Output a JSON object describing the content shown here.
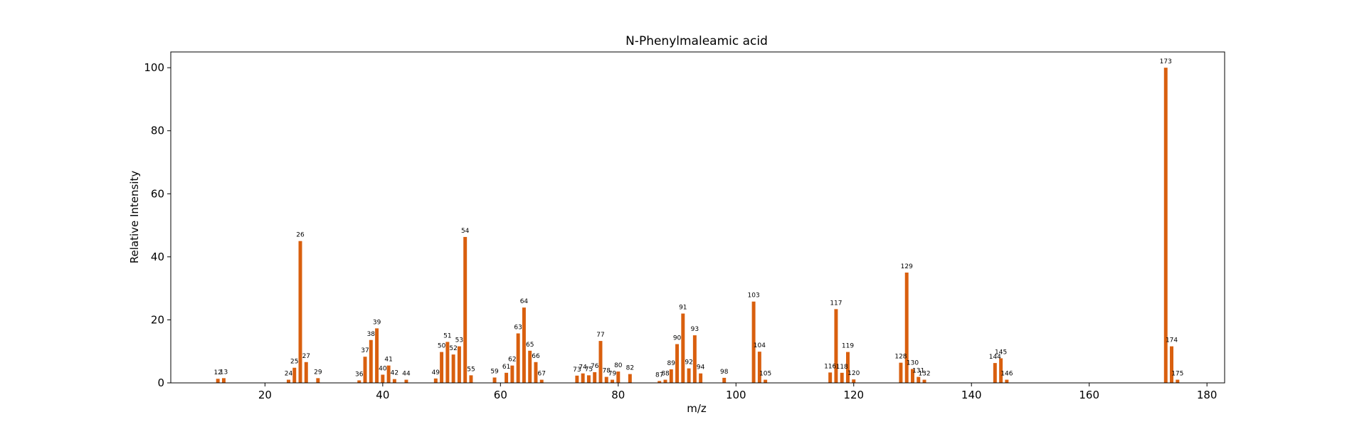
{
  "chart_data": {
    "type": "bar",
    "title": "N-Phenylmaleamic acid",
    "xlabel": "m/z",
    "ylabel": "Relative Intensity",
    "xlim": [
      4,
      183
    ],
    "ylim": [
      0,
      105
    ],
    "xticks": [
      20,
      40,
      60,
      80,
      100,
      120,
      140,
      160,
      180
    ],
    "yticks": [
      0,
      20,
      40,
      60,
      80,
      100
    ],
    "grid": false,
    "bar_color": "#d95f0e",
    "peaks": [
      {
        "mz": 12,
        "intensity": 1.3,
        "label": "12"
      },
      {
        "mz": 13,
        "intensity": 1.5,
        "label": "13"
      },
      {
        "mz": 24,
        "intensity": 1.0,
        "label": "24"
      },
      {
        "mz": 25,
        "intensity": 4.8,
        "label": "25"
      },
      {
        "mz": 26,
        "intensity": 45.0,
        "label": "26"
      },
      {
        "mz": 27,
        "intensity": 6.6,
        "label": "27"
      },
      {
        "mz": 29,
        "intensity": 1.5,
        "label": "29"
      },
      {
        "mz": 36,
        "intensity": 0.8,
        "label": "36"
      },
      {
        "mz": 37,
        "intensity": 8.3,
        "label": "37"
      },
      {
        "mz": 38,
        "intensity": 13.6,
        "label": "38"
      },
      {
        "mz": 39,
        "intensity": 17.3,
        "label": "39"
      },
      {
        "mz": 40,
        "intensity": 2.6,
        "label": "40"
      },
      {
        "mz": 41,
        "intensity": 5.5,
        "label": "41"
      },
      {
        "mz": 42,
        "intensity": 1.2,
        "label": "42"
      },
      {
        "mz": 44,
        "intensity": 1.0,
        "label": "44"
      },
      {
        "mz": 49,
        "intensity": 1.4,
        "label": "49"
      },
      {
        "mz": 50,
        "intensity": 9.8,
        "label": "50"
      },
      {
        "mz": 51,
        "intensity": 13.0,
        "label": "51"
      },
      {
        "mz": 52,
        "intensity": 9.0,
        "label": "52"
      },
      {
        "mz": 53,
        "intensity": 11.6,
        "label": "53"
      },
      {
        "mz": 54,
        "intensity": 46.3,
        "label": "54"
      },
      {
        "mz": 55,
        "intensity": 2.4,
        "label": "55"
      },
      {
        "mz": 59,
        "intensity": 1.7,
        "label": "59"
      },
      {
        "mz": 61,
        "intensity": 3.2,
        "label": "61"
      },
      {
        "mz": 62,
        "intensity": 5.5,
        "label": "62"
      },
      {
        "mz": 63,
        "intensity": 15.7,
        "label": "63"
      },
      {
        "mz": 64,
        "intensity": 23.9,
        "label": "64"
      },
      {
        "mz": 65,
        "intensity": 10.2,
        "label": "65"
      },
      {
        "mz": 66,
        "intensity": 6.6,
        "label": "66"
      },
      {
        "mz": 67,
        "intensity": 1.0,
        "label": "67"
      },
      {
        "mz": 73,
        "intensity": 2.3,
        "label": "73"
      },
      {
        "mz": 74,
        "intensity": 3.0,
        "label": "74"
      },
      {
        "mz": 75,
        "intensity": 2.4,
        "label": "75"
      },
      {
        "mz": 76,
        "intensity": 3.4,
        "label": "76"
      },
      {
        "mz": 77,
        "intensity": 13.3,
        "label": "77"
      },
      {
        "mz": 78,
        "intensity": 1.9,
        "label": "78"
      },
      {
        "mz": 79,
        "intensity": 1.0,
        "label": "79"
      },
      {
        "mz": 80,
        "intensity": 3.6,
        "label": "80"
      },
      {
        "mz": 82,
        "intensity": 2.8,
        "label": "82"
      },
      {
        "mz": 87,
        "intensity": 0.6,
        "label": "87"
      },
      {
        "mz": 88,
        "intensity": 1.0,
        "label": "88"
      },
      {
        "mz": 89,
        "intensity": 4.3,
        "label": "89"
      },
      {
        "mz": 90,
        "intensity": 12.3,
        "label": "90"
      },
      {
        "mz": 91,
        "intensity": 22.0,
        "label": "91"
      },
      {
        "mz": 92,
        "intensity": 4.6,
        "label": "92"
      },
      {
        "mz": 93,
        "intensity": 15.1,
        "label": "93"
      },
      {
        "mz": 94,
        "intensity": 3.0,
        "label": "94"
      },
      {
        "mz": 98,
        "intensity": 1.6,
        "label": "98"
      },
      {
        "mz": 103,
        "intensity": 25.8,
        "label": "103"
      },
      {
        "mz": 104,
        "intensity": 9.9,
        "label": "104"
      },
      {
        "mz": 105,
        "intensity": 1.0,
        "label": "105"
      },
      {
        "mz": 116,
        "intensity": 3.3,
        "label": "116"
      },
      {
        "mz": 117,
        "intensity": 23.4,
        "label": "117"
      },
      {
        "mz": 118,
        "intensity": 3.2,
        "label": "118"
      },
      {
        "mz": 119,
        "intensity": 9.8,
        "label": "119"
      },
      {
        "mz": 120,
        "intensity": 1.1,
        "label": "120"
      },
      {
        "mz": 128,
        "intensity": 6.4,
        "label": "128"
      },
      {
        "mz": 129,
        "intensity": 35.0,
        "label": "129"
      },
      {
        "mz": 130,
        "intensity": 4.4,
        "label": "130"
      },
      {
        "mz": 131,
        "intensity": 1.9,
        "label": "131"
      },
      {
        "mz": 132,
        "intensity": 1.0,
        "label": "132"
      },
      {
        "mz": 144,
        "intensity": 6.3,
        "label": "144"
      },
      {
        "mz": 145,
        "intensity": 7.8,
        "label": "145"
      },
      {
        "mz": 146,
        "intensity": 1.0,
        "label": "146"
      },
      {
        "mz": 173,
        "intensity": 100.0,
        "label": "173"
      },
      {
        "mz": 174,
        "intensity": 11.6,
        "label": "174"
      },
      {
        "mz": 175,
        "intensity": 1.0,
        "label": "175"
      }
    ]
  }
}
